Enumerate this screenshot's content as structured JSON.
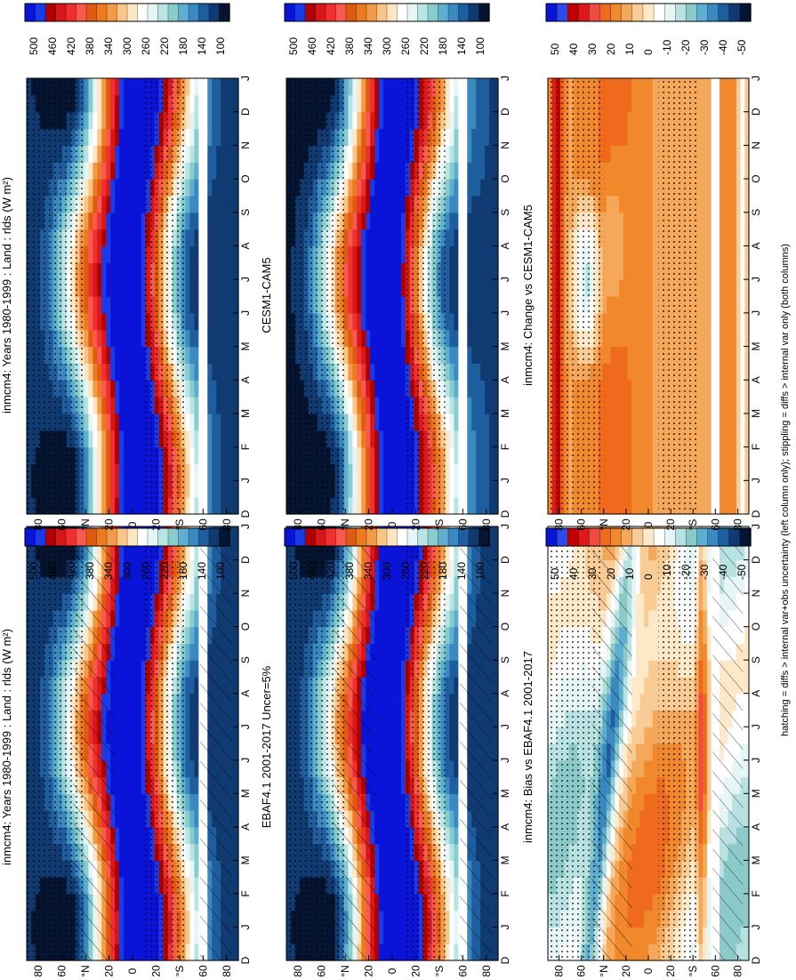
{
  "figure_caption": "hatching = diffs > internal var+obs uncertainty (left column only); stippling = diffs > internal var only (both columns)",
  "colors": {
    "abs_palette": [
      "#0a14d8",
      "#1a3ae8",
      "#b00000",
      "#d81818",
      "#f03030",
      "#f85a50",
      "#e05a10",
      "#ee7a20",
      "#f39a48",
      "#f8c688",
      "#fde6c0",
      "#ffffff",
      "#e6f6f6",
      "#b8e4e4",
      "#88cccc",
      "#5eaed2",
      "#3a8ac0",
      "#1e5e9e",
      "#103a72",
      "#051430"
    ],
    "diff_palette": [
      "#0a14d8",
      "#2a4aee",
      "#c20000",
      "#e01818",
      "#f24a40",
      "#f06a1e",
      "#f2882c",
      "#f5a85a",
      "#f9cc96",
      "#fde8c8",
      "#ffffff",
      "#e6f6f6",
      "#b8e2e2",
      "#8ccaca",
      "#5eaed2",
      "#3a8ac0",
      "#1e5e9e",
      "#103a72",
      "#051430"
    ]
  },
  "chart_data": [
    {
      "type": "heatmap",
      "name": "inmcm4 model climatology",
      "title": "inmcm4: Years 1980-1999 : Land : rlds (W m²)",
      "xlabel": "month",
      "ylabel": "latitude",
      "x_ticks": [
        "D",
        "J",
        "F",
        "M",
        "A",
        "M",
        "J",
        "J",
        "A",
        "S",
        "O",
        "N",
        "D",
        "J"
      ],
      "y_ticks": [
        "80",
        "60",
        "°N",
        "20",
        "0",
        "20",
        "°S",
        "60",
        "80"
      ],
      "ylim": [
        -90,
        90
      ],
      "colorbar_labels": [
        "500",
        "460",
        "420",
        "380",
        "340",
        "300",
        "260",
        "220",
        "180",
        "140",
        "100"
      ],
      "overlay": "hatching and stippling"
    },
    {
      "type": "heatmap",
      "name": "EBAF4.1 observations",
      "title": "EBAF4.1 2001-2017 Uncer=5%",
      "xlabel": "month",
      "ylabel": "latitude",
      "x_ticks": [
        "D",
        "J",
        "F",
        "M",
        "A",
        "M",
        "J",
        "J",
        "A",
        "S",
        "O",
        "N",
        "D",
        "J"
      ],
      "y_ticks": [
        "80",
        "60",
        "°N",
        "20",
        "0",
        "20",
        "°S",
        "60",
        "80"
      ],
      "ylim": [
        -90,
        90
      ],
      "colorbar_labels": [
        "500",
        "460",
        "420",
        "380",
        "340",
        "300",
        "260",
        "220",
        "180",
        "140",
        "100"
      ],
      "overlay": "hatching and stippling"
    },
    {
      "type": "heatmap",
      "name": "inmcm4 bias",
      "title": "inmcm4: Bias vs EBAF4.1 2001-2017",
      "xlabel": "month",
      "ylabel": "latitude",
      "x_ticks": [
        "D",
        "J",
        "F",
        "M",
        "A",
        "M",
        "J",
        "J",
        "A",
        "S",
        "O",
        "N",
        "D",
        "J"
      ],
      "y_ticks": [
        "80",
        "60",
        "°N",
        "20",
        "0",
        "20",
        "°S",
        "60",
        "80"
      ],
      "ylim": [
        -90,
        90
      ],
      "colorbar_labels": [
        "50",
        "40",
        "30",
        "20",
        "10",
        "0",
        "-10",
        "-20",
        "-30",
        "-40",
        "-50"
      ],
      "overlay": "hatching and stippling"
    },
    {
      "type": "heatmap",
      "name": "inmcm4 climatology (right)",
      "title": "inmcm4: Years 1980-1999 : Land : rlds (W m²)",
      "xlabel": "month",
      "ylabel": "latitude",
      "x_ticks": [
        "D",
        "J",
        "F",
        "M",
        "A",
        "M",
        "J",
        "J",
        "A",
        "S",
        "O",
        "N",
        "D",
        "J"
      ],
      "y_ticks": [
        "80",
        "60",
        "°N",
        "20",
        "0",
        "20",
        "°S",
        "60",
        "80"
      ],
      "ylim": [
        -90,
        90
      ],
      "colorbar_labels": [
        "500",
        "460",
        "420",
        "380",
        "340",
        "300",
        "260",
        "220",
        "180",
        "140",
        "100"
      ],
      "overlay": "stippling"
    },
    {
      "type": "heatmap",
      "name": "CESM1-CAM5 climatology",
      "title": "CESM1-CAM5",
      "xlabel": "month",
      "ylabel": "latitude",
      "x_ticks": [
        "D",
        "J",
        "F",
        "M",
        "A",
        "M",
        "J",
        "J",
        "A",
        "S",
        "O",
        "N",
        "D",
        "J"
      ],
      "y_ticks": [
        "80",
        "60",
        "°N",
        "20",
        "0",
        "20",
        "°S",
        "60",
        "80"
      ],
      "ylim": [
        -90,
        90
      ],
      "colorbar_labels": [
        "500",
        "460",
        "420",
        "380",
        "340",
        "300",
        "260",
        "220",
        "180",
        "140",
        "100"
      ],
      "overlay": "stippling"
    },
    {
      "type": "heatmap",
      "name": "inmcm4 change",
      "title": "inmcm4: Change vs CESM1-CAM5",
      "xlabel": "month",
      "ylabel": "latitude",
      "x_ticks": [
        "D",
        "J",
        "F",
        "M",
        "A",
        "M",
        "J",
        "J",
        "A",
        "S",
        "O",
        "N",
        "D",
        "J"
      ],
      "y_ticks": [
        "80",
        "60",
        "°N",
        "20",
        "0",
        "20",
        "°S",
        "60",
        "80"
      ],
      "ylim": [
        -90,
        90
      ],
      "colorbar_labels": [
        "50",
        "40",
        "30",
        "20",
        "10",
        "0",
        "-10",
        "-20",
        "-30",
        "-40",
        "-50"
      ],
      "overlay": "stippling"
    }
  ]
}
